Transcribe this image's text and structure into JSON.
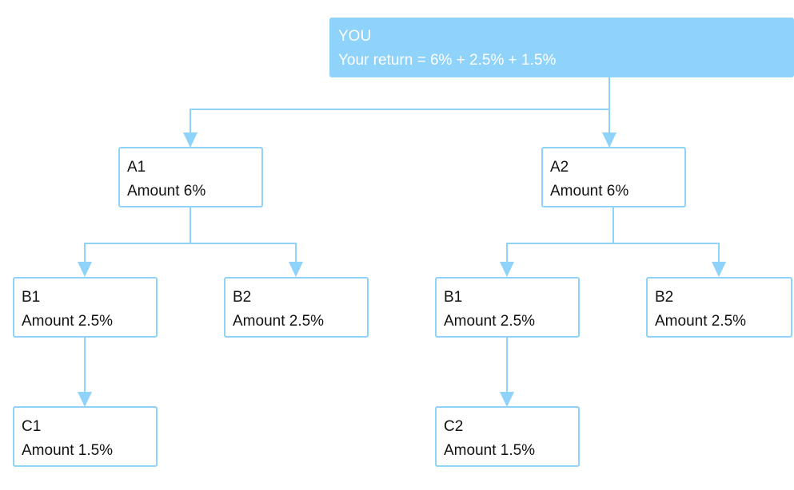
{
  "colors": {
    "accent": "#8fd2fa",
    "node_text": "#111111",
    "root_text": "#ffffff",
    "node_background": "#ffffff"
  },
  "root": {
    "title": "YOU",
    "formula": "Your return = 6% + 2.5% + 1.5%"
  },
  "level1": [
    {
      "name": "A1",
      "amount": "Amount 6%"
    },
    {
      "name": "A2",
      "amount": "Amount 6%"
    }
  ],
  "level2": [
    {
      "name": "B1",
      "amount": "Amount 2.5%"
    },
    {
      "name": "B2",
      "amount": "Amount 2.5%"
    },
    {
      "name": "B1",
      "amount": "Amount 2.5%"
    },
    {
      "name": "B2",
      "amount": "Amount 2.5%"
    }
  ],
  "level3": [
    {
      "name": "C1",
      "amount": "Amount 1.5%"
    },
    {
      "name": "C2",
      "amount": "Amount 1.5%"
    }
  ]
}
